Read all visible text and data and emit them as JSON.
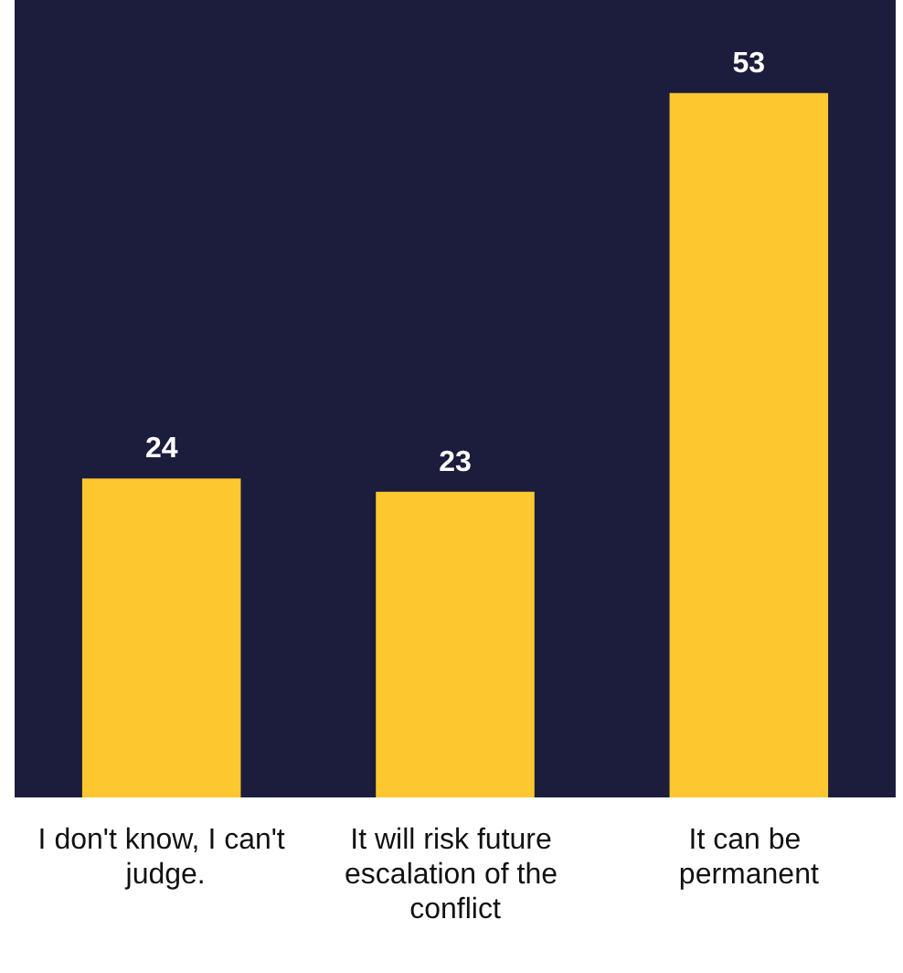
{
  "chart_data": {
    "type": "bar",
    "categories": [
      "I don't know, I can't judge.",
      "It will risk future escalation of the conflict",
      "It can be permanent"
    ],
    "values": [
      24,
      23,
      53
    ],
    "color": "#fdc82f",
    "data_labels": true,
    "grid": false
  }
}
